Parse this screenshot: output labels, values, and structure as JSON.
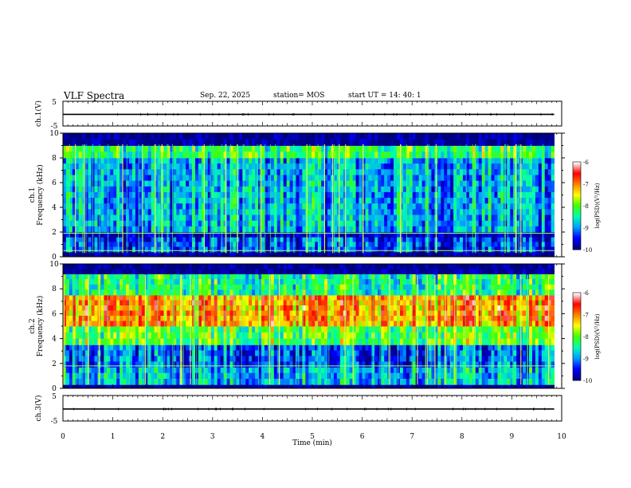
{
  "header": {
    "title": "VLF Spectra",
    "date": "Sep. 22, 2025",
    "station": "station= MOS",
    "start": "start  UT =   14: 40: 1"
  },
  "chart_data": [
    {
      "type": "line",
      "panel": "ch1-waveform",
      "ylabel": "ch.1(V)",
      "yticks": [
        "5",
        "-5"
      ],
      "ylim": [
        -5,
        5
      ],
      "x_range_min": [
        0,
        9.85
      ],
      "value_v": -0.3
    },
    {
      "type": "heatmap",
      "panel": "ch1-spectrogram",
      "ylabel": "ch.1\nFrequency (kHz)",
      "ylim": [
        0,
        10
      ],
      "yticks": [
        "0",
        "2",
        "4",
        "6",
        "8",
        "10"
      ],
      "xlim": [
        0,
        10
      ],
      "data_end_min": 9.85,
      "colorbar": {
        "label": "log(PSD)(V²/Hz)",
        "range": [
          -10,
          -6
        ],
        "ticks": [
          "-6",
          "-7",
          "-8",
          "-9",
          "-10"
        ]
      },
      "bands_khz": [
        {
          "from": 0,
          "to": 0.4,
          "level": -10
        },
        {
          "from": 0.4,
          "to": 1.6,
          "level": -9.3
        },
        {
          "from": 1.6,
          "to": 2.0,
          "level": -9.8
        },
        {
          "from": 2.0,
          "to": 8.0,
          "level": -8.9
        },
        {
          "from": 8.0,
          "to": 9.0,
          "level": -8.2
        },
        {
          "from": 9.0,
          "to": 10,
          "level": -10
        }
      ],
      "lines_khz": [
        0.5,
        1.9
      ]
    },
    {
      "type": "heatmap",
      "panel": "ch2-spectrogram",
      "ylabel": "ch.2\nFrequency (kHz)",
      "ylim": [
        0,
        10
      ],
      "yticks": [
        "0",
        "2",
        "4",
        "6",
        "8",
        "10"
      ],
      "xlim": [
        0,
        10
      ],
      "data_end_min": 9.85,
      "colorbar": {
        "label": "log(PSD)(V²/Hz)",
        "range": [
          -10,
          -6
        ],
        "ticks": [
          "-6",
          "-7",
          "-8",
          "-9",
          "-10"
        ]
      },
      "bands_khz": [
        {
          "from": 0,
          "to": 0.3,
          "level": -10
        },
        {
          "from": 0.3,
          "to": 1.7,
          "level": -8.8
        },
        {
          "from": 1.7,
          "to": 3.5,
          "level": -9.2
        },
        {
          "from": 3.5,
          "to": 5.0,
          "level": -8.0
        },
        {
          "from": 5.0,
          "to": 7.5,
          "level": -7.0
        },
        {
          "from": 7.5,
          "to": 9.2,
          "level": -8.3
        },
        {
          "from": 9.2,
          "to": 10,
          "level": -10
        }
      ],
      "lines_khz": [
        1.8
      ]
    },
    {
      "type": "line",
      "panel": "ch3-waveform",
      "ylabel": "ch.3(V)",
      "yticks": [
        "5",
        "-5"
      ],
      "ylim": [
        -5,
        5
      ],
      "x_range_min": [
        0,
        9.85
      ],
      "value_v": -0.3
    }
  ],
  "x_axis": {
    "label": "Time (min)",
    "ticks": [
      "0",
      "1",
      "2",
      "3",
      "4",
      "5",
      "6",
      "7",
      "8",
      "9",
      "10"
    ]
  },
  "colorscale": [
    "#000080",
    "#0000ff",
    "#00a0ff",
    "#00ffb0",
    "#40ff00",
    "#ffff00",
    "#ff8000",
    "#ff0000",
    "#ffffff"
  ]
}
